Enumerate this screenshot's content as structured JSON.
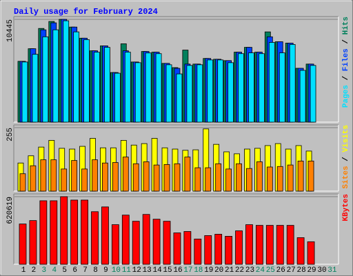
{
  "chart_data": [
    {
      "type": "bar",
      "title": "Daily usage for February 2024",
      "ylim": [
        0,
        10445
      ],
      "yticks": [
        10445
      ],
      "legend_separator": " / ",
      "series": [
        {
          "name": "Hits",
          "color": "#00805c",
          "values": [
            6180,
            7460,
            9520,
            10230,
            10445,
            9660,
            8530,
            7250,
            7750,
            5040,
            7960,
            6110,
            7180,
            7110,
            5970,
            5540,
            7320,
            5900,
            6470,
            6390,
            6250,
            7110,
            7600,
            7110,
            9170,
            8170,
            8030,
            5470,
            5900,
            null,
            null
          ]
        },
        {
          "name": "Files",
          "color": "#0040ff",
          "values": [
            6180,
            7460,
            9380,
            10090,
            10445,
            9660,
            8530,
            7250,
            7750,
            5040,
            7250,
            6110,
            7180,
            7110,
            5970,
            5470,
            5900,
            5900,
            6470,
            6390,
            6250,
            7110,
            7600,
            7110,
            8670,
            8170,
            8030,
            5470,
            5900,
            null,
            null
          ]
        },
        {
          "name": "Pages",
          "color": "#00e0ff",
          "values": [
            6110,
            6890,
            8670,
            9380,
            10300,
            9170,
            8380,
            7110,
            7600,
            4970,
            7110,
            6040,
            7030,
            6960,
            5830,
            4900,
            5760,
            5830,
            6320,
            6320,
            6040,
            6960,
            7040,
            6960,
            8100,
            7040,
            7890,
            5260,
            5760,
            null,
            null
          ]
        }
      ]
    },
    {
      "type": "bar",
      "ylim": [
        0,
        255
      ],
      "yticks": [
        255
      ],
      "legend_separator": " / ",
      "series": [
        {
          "name": "Visits",
          "color": "#ffff00",
          "values": [
            113,
            142,
            177,
            204,
            172,
            169,
            180,
            212,
            174,
            174,
            204,
            185,
            191,
            212,
            174,
            169,
            164,
            166,
            250,
            188,
            158,
            150,
            169,
            172,
            183,
            191,
            169,
            183,
            161,
            null,
            null
          ]
        },
        {
          "name": "Sites",
          "color": "#ff8000",
          "values": [
            70,
            102,
            126,
            126,
            89,
            123,
            89,
            126,
            113,
            115,
            137,
            110,
            118,
            105,
            107,
            110,
            137,
            94,
            94,
            110,
            89,
            110,
            91,
            118,
            97,
            99,
            105,
            121,
            121,
            null,
            null
          ]
        }
      ]
    },
    {
      "type": "bar",
      "ylim": [
        0,
        620619
      ],
      "yticks": [
        620619
      ],
      "categories": [
        "1",
        "2",
        "3",
        "4",
        "5",
        "6",
        "7",
        "8",
        "9",
        "10",
        "11",
        "12",
        "13",
        "14",
        "15",
        "16",
        "17",
        "18",
        "19",
        "20",
        "21",
        "22",
        "23",
        "24",
        "25",
        "26",
        "27",
        "28",
        "29",
        "30",
        "31"
      ],
      "category_colors": [
        "#000000",
        "#000000",
        "#00805c",
        "#00805c",
        "#000000",
        "#000000",
        "#000000",
        "#000000",
        "#000000",
        "#00805c",
        "#00805c",
        "#000000",
        "#000000",
        "#000000",
        "#000000",
        "#000000",
        "#00805c",
        "#00805c",
        "#000000",
        "#000000",
        "#000000",
        "#000000",
        "#000000",
        "#00805c",
        "#00805c",
        "#000000",
        "#000000",
        "#000000",
        "#000000",
        "#000000",
        "#00805c"
      ],
      "series": [
        {
          "name": "KBytes",
          "color": "#ff0000",
          "values": [
            369900,
            401200,
            583000,
            583000,
            620619,
            589300,
            589300,
            482700,
            526600,
            363600,
            451400,
            394900,
            457600,
            413800,
            394900,
            288400,
            300900,
            231900,
            263300,
            275800,
            257000,
            307200,
            363600,
            357300,
            357300,
            357300,
            357300,
            244500,
            206900,
            null,
            null
          ]
        }
      ]
    }
  ]
}
